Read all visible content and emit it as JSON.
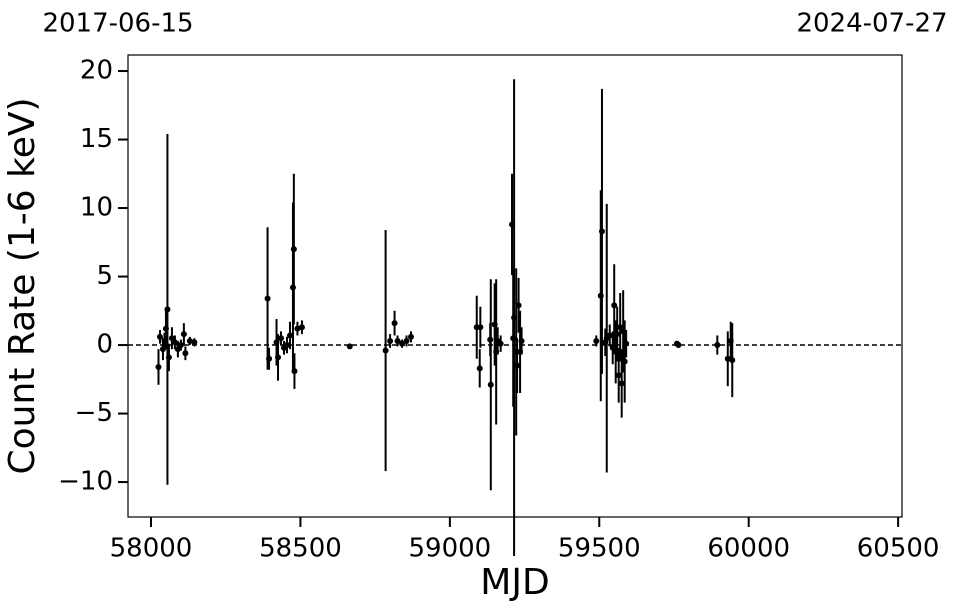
{
  "chart_data": {
    "type": "scatter",
    "x_label": "MJD",
    "y_label": "Count Rate (1-6 keV)",
    "annotations": [
      "2017-06-15",
      "2024-07-27"
    ],
    "color": "#000000",
    "reference_line": 0,
    "xlim": [
      57923,
      60513
    ],
    "ylim": [
      -12.55,
      21.17
    ],
    "xticks": [
      58000,
      58500,
      59000,
      59500,
      60000,
      60500
    ],
    "yticks": [
      {
        "value": -10,
        "label": "−10"
      },
      {
        "value": -5,
        "label": "−5"
      },
      0,
      5,
      10,
      15,
      20
    ],
    "x": [
      58025,
      58030,
      58040,
      58045,
      58050,
      58055,
      58060,
      58070,
      58080,
      58090,
      58100,
      58110,
      58115,
      58130,
      58145,
      58390,
      58395,
      58420,
      58425,
      58435,
      58445,
      58455,
      58465,
      58475,
      58478,
      58480,
      58490,
      58505,
      58665,
      58785,
      58800,
      58815,
      58825,
      58840,
      58855,
      58870,
      59090,
      59100,
      59102,
      59135,
      59137,
      59150,
      59155,
      59160,
      59170,
      59208,
      59212,
      59215,
      59222,
      59225,
      59230,
      59235,
      59240,
      59490,
      59505,
      59509,
      59520,
      59525,
      59535,
      59545,
      59550,
      59555,
      59560,
      59565,
      59570,
      59575,
      59580,
      59585,
      59590,
      59760,
      59765,
      59895,
      59930,
      59940,
      59945
    ],
    "values": [
      -1.6,
      0.6,
      -0.3,
      0.3,
      1.2,
      2.6,
      -0.9,
      0.5,
      0.2,
      -0.3,
      0.0,
      0.8,
      -0.6,
      0.3,
      0.2,
      3.4,
      -1.0,
      0.2,
      -0.9,
      0.5,
      -0.2,
      0.0,
      0.7,
      4.2,
      7.0,
      -1.9,
      1.2,
      1.3,
      -0.1,
      -0.4,
      0.3,
      1.6,
      0.3,
      0.1,
      0.3,
      0.6,
      1.3,
      -1.7,
      1.3,
      0.4,
      -2.9,
      1.5,
      -0.5,
      0.3,
      0.1,
      8.8,
      0.5,
      2.0,
      -0.5,
      -1.5,
      2.9,
      -0.5,
      0.3,
      0.3,
      3.6,
      8.3,
      0.2,
      0.5,
      0.7,
      -0.2,
      2.9,
      -0.5,
      0.8,
      -2.2,
      1.3,
      -2.8,
      1.0,
      -1.2,
      0.1,
      0.1,
      0.0,
      0.0,
      -1.0,
      0.3,
      -1.1
    ],
    "errors": [
      1.3,
      0.5,
      0.8,
      0.6,
      1.5,
      12.8,
      1.0,
      0.8,
      0.5,
      0.6,
      0.4,
      0.8,
      0.5,
      0.3,
      0.3,
      5.2,
      0.8,
      1.7,
      1.7,
      0.5,
      0.5,
      0.6,
      1.0,
      6.2,
      5.5,
      1.3,
      0.5,
      0.5,
      0.1,
      8.8,
      0.5,
      0.9,
      0.4,
      0.3,
      0.4,
      0.4,
      2.3,
      1.4,
      1.5,
      1.2,
      7.7,
      3.0,
      5.3,
      1.0,
      0.6,
      3.7,
      5.0,
      17.4,
      6.1,
      2.0,
      2.0,
      3.0,
      1.0,
      0.4,
      7.7,
      10.4,
      1.0,
      9.8,
      0.8,
      1.2,
      3.0,
      2.3,
      2.0,
      2.0,
      2.5,
      2.5,
      3.0,
      3.0,
      1.0,
      0.1,
      0.2,
      0.7,
      2.0,
      1.4,
      2.7
    ]
  }
}
